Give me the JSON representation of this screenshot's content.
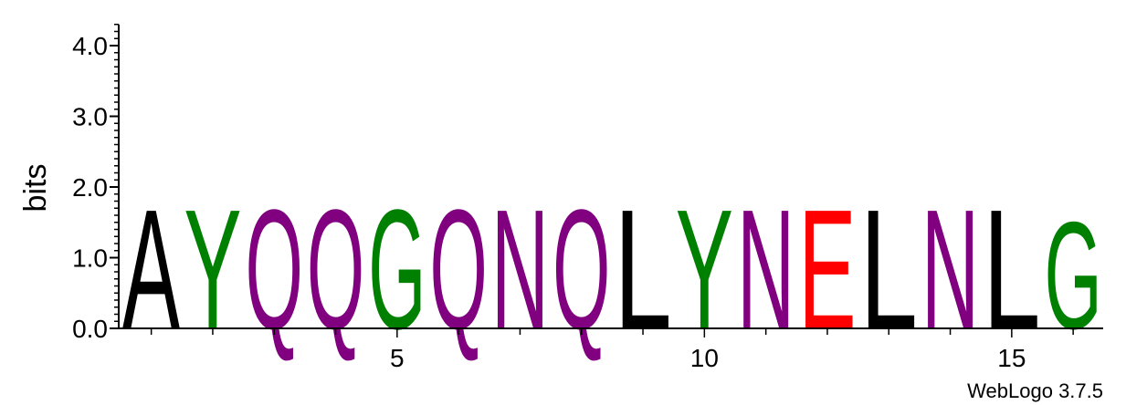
{
  "chart_data": {
    "type": "sequence-logo",
    "ylabel": "bits",
    "ylim": [
      0,
      4.3
    ],
    "yticks": [
      {
        "value": 0,
        "label": "0.0"
      },
      {
        "value": 1,
        "label": "1.0"
      },
      {
        "value": 2,
        "label": "2.0"
      },
      {
        "value": 3,
        "label": "3.0"
      },
      {
        "value": 4,
        "label": "4.0"
      }
    ],
    "xticks": [
      {
        "value": 5,
        "label": "5"
      },
      {
        "value": 10,
        "label": "10"
      },
      {
        "value": 15,
        "label": "15"
      }
    ],
    "positions": [
      {
        "pos": 1,
        "letter": "A",
        "bits": 1.74,
        "color": "#000000"
      },
      {
        "pos": 2,
        "letter": "Y",
        "bits": 1.74,
        "color": "#008000"
      },
      {
        "pos": 3,
        "letter": "Q",
        "bits": 1.74,
        "color": "#800080"
      },
      {
        "pos": 4,
        "letter": "Q",
        "bits": 1.74,
        "color": "#800080"
      },
      {
        "pos": 5,
        "letter": "G",
        "bits": 1.74,
        "color": "#008000"
      },
      {
        "pos": 6,
        "letter": "Q",
        "bits": 1.74,
        "color": "#800080"
      },
      {
        "pos": 7,
        "letter": "N",
        "bits": 1.74,
        "color": "#800080"
      },
      {
        "pos": 8,
        "letter": "Q",
        "bits": 1.74,
        "color": "#800080"
      },
      {
        "pos": 9,
        "letter": "L",
        "bits": 1.74,
        "color": "#000000"
      },
      {
        "pos": 10,
        "letter": "Y",
        "bits": 1.74,
        "color": "#008000"
      },
      {
        "pos": 11,
        "letter": "N",
        "bits": 1.74,
        "color": "#800080"
      },
      {
        "pos": 12,
        "letter": "E",
        "bits": 1.74,
        "color": "#ff0000"
      },
      {
        "pos": 13,
        "letter": "L",
        "bits": 1.74,
        "color": "#000000"
      },
      {
        "pos": 14,
        "letter": "N",
        "bits": 1.74,
        "color": "#800080"
      },
      {
        "pos": 15,
        "letter": "L",
        "bits": 1.74,
        "color": "#000000"
      },
      {
        "pos": 16,
        "letter": "G",
        "bits": 1.56,
        "color": "#008000"
      }
    ]
  },
  "footer": {
    "credit": "WebLogo 3.7.5"
  }
}
